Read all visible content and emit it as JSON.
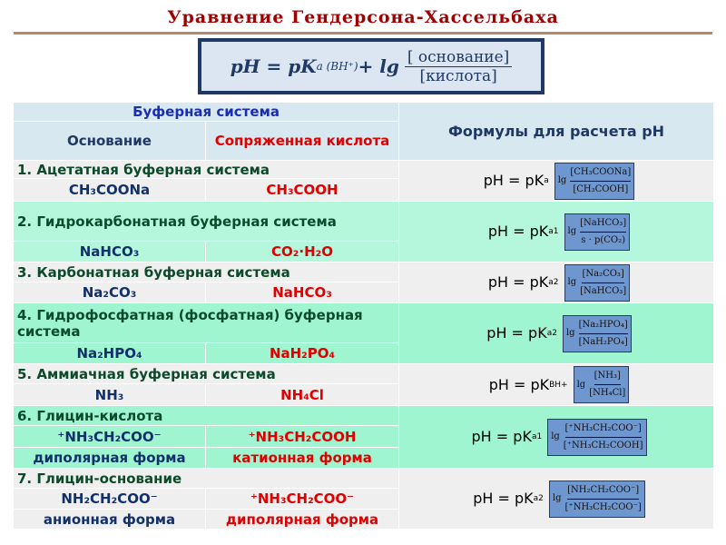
{
  "title": "Уравнение  Гендерсона-Хассельбаха",
  "main_formula": {
    "lhs": "pH = pK",
    "sub": "a (BH⁺)",
    "plus": " + lg",
    "numerator": "[ основание]",
    "denominator": "[кислота]"
  },
  "header": {
    "buffer_system": "Буферная система",
    "base": "Основание",
    "conj_acid": "Сопряженная кислота",
    "formulas": "Формулы для расчета pH"
  },
  "rows": [
    {
      "title": "1.  Ацетатная буферная система",
      "base": "CH₃COONa",
      "acid": "CH₃COOH",
      "ph": "pH = pK",
      "k": "a",
      "num": "[CH₃COONa]",
      "den": "[CH₃COOH]"
    },
    {
      "title": "2. Гидрокарбонатная буферная система",
      "base": "NaHCO₃",
      "acid": "CO₂·H₂O",
      "ph": "pH = pK",
      "k": "a1",
      "num": "[NaHCO₃]",
      "den": "s · p(CO₂)"
    },
    {
      "title": "3. Карбонатная буферная система",
      "base": "Na₂CO₃",
      "acid": "NaHCO₃",
      "ph": "pH = pK",
      "k": "a2",
      "num": "[Na₂CO₃]",
      "den": "[NaHCO₃]"
    },
    {
      "title": "4. Гидрофосфатная (фосфатная) буферная система",
      "base": "Na₂HPO₄",
      "acid": "NaH₂PO₄",
      "ph": "pH = pK",
      "k": "a2",
      "num": "[Na₂HPO₄]",
      "den": "[NaH₂PO₄]"
    },
    {
      "title": "5. Аммиачная буферная система",
      "base": "NH₃",
      "acid": "NH₄Cl",
      "ph": "pH = pK",
      "k": "BH+",
      "num": "[NH₃]",
      "den": "[NH₄Cl]"
    },
    {
      "title": "6. Глицин-кислота",
      "base": "⁺NH₃CH₂COO⁻",
      "acid": "⁺NH₃CH₂COOH",
      "base_form": "диполярная форма",
      "acid_form": "катионная форма",
      "ph": "pH = pK",
      "k": "a1",
      "num": "[⁺NH₃CH₂COO⁻]",
      "den": "[⁺NH₃CH₂COOH]"
    },
    {
      "title": "7. Глицин-основание",
      "base": "NH₂CH₂COO⁻",
      "acid": "⁺NH₃CH₂COO⁻",
      "base_form": "анионная форма",
      "acid_form": "диполярная форма",
      "ph": "pH = pK",
      "k": "a2",
      "num": "[NH₂CH₂COO⁻]",
      "den": "[⁺NH₃CH₂COO⁻]"
    }
  ],
  "lg": "lg",
  "colors": {
    "title": "#a00000",
    "header_bg": "#d8e8f1",
    "gray_row": "#efefef",
    "green_row": "#b4f7dd",
    "formula_box": "#6f97cf"
  }
}
